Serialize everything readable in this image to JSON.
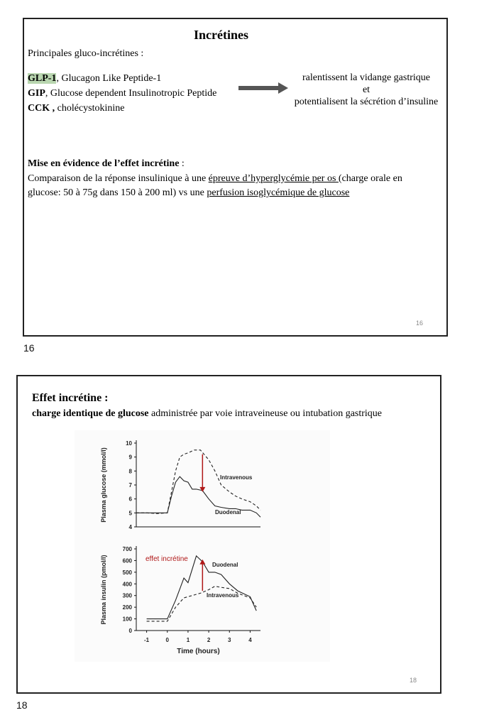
{
  "slide1": {
    "title": "Incrétines",
    "intro": "Principales gluco-incrétines :",
    "items": [
      {
        "abbr": "GLP-1",
        "desc": ", Glucagon Like Peptide-1"
      },
      {
        "abbr": "GIP",
        "desc": ", Glucose dependent Insulinotropic Peptide"
      },
      {
        "abbr": "CCK ,",
        "desc": " cholécystokinine"
      }
    ],
    "effects": [
      "ralentissent la vidange gastrique",
      "et",
      "potentialisent la sécrétion d’insuline"
    ],
    "section_title": "Mise en évidence de l’effet incrétine",
    "section_colon": " :",
    "line1_a": "Comparaison de la réponse insulinique à une ",
    "line1_u": "épreuve d’hyperglycémie per os ",
    "line1_b": "(charge orale en",
    "line2_a": "glucose: 50 à 75g dans 150 à 200 ml) vs une ",
    "line2_u": "perfusion isoglycémique de glucose",
    "slide_number": "16"
  },
  "page_label_1": "16",
  "slide2": {
    "title": "Effet incrétine :",
    "subtitle_bold": "charge identique de glucose",
    "subtitle_rest": " administrée par voie intraveineuse ou intubation gastrique",
    "slide_number": "18"
  },
  "page_label_2": "18",
  "chart_data": [
    {
      "type": "line",
      "ylabel": "Plasma glucose (mmol/l)",
      "xlim": [
        -1.5,
        4.5
      ],
      "ylim": [
        4,
        10
      ],
      "yticks": [
        4,
        5,
        6,
        7,
        8,
        9,
        10
      ],
      "series": [
        {
          "name": "Intravenous",
          "style": "dashed",
          "x": [
            -1.5,
            -1,
            -0.5,
            0,
            0.2,
            0.4,
            0.6,
            0.8,
            1.0,
            1.3,
            1.6,
            2.0,
            2.3,
            2.6,
            3.0,
            3.3,
            3.6,
            4.0,
            4.3,
            4.5
          ],
          "y": [
            5.0,
            5.0,
            4.95,
            5.0,
            6.5,
            8.0,
            9.0,
            9.2,
            9.3,
            9.5,
            9.5,
            8.8,
            8.0,
            7.0,
            6.5,
            6.2,
            6.0,
            5.8,
            5.5,
            5.2
          ]
        },
        {
          "name": "Duodenal",
          "style": "solid",
          "x": [
            -1.5,
            -1,
            -0.5,
            0,
            0.2,
            0.4,
            0.6,
            0.8,
            1.0,
            1.2,
            1.4,
            1.7,
            2.0,
            2.3,
            2.6,
            3.0,
            3.3,
            3.6,
            4.0,
            4.3,
            4.5
          ],
          "y": [
            5.0,
            5.0,
            5.0,
            5.0,
            6.2,
            7.2,
            7.6,
            7.3,
            7.2,
            6.7,
            6.7,
            6.6,
            6.0,
            5.5,
            5.4,
            5.3,
            5.3,
            5.2,
            5.2,
            5.0,
            4.7
          ]
        }
      ],
      "annotation_arrow": {
        "x": 1.7,
        "from": 9.2,
        "to": 6.5
      }
    },
    {
      "type": "line",
      "ylabel": "Plasma insulin (pmol/l)",
      "xlabel": "Time (hours)",
      "xlim": [
        -1.5,
        4.5
      ],
      "xticks": [
        -1,
        0,
        1,
        2,
        3,
        4
      ],
      "ylim": [
        0,
        700
      ],
      "yticks": [
        0,
        100,
        200,
        300,
        400,
        500,
        600,
        700
      ],
      "series": [
        {
          "name": "Duodenal",
          "style": "solid",
          "x": [
            -1,
            0,
            0.4,
            0.8,
            1.0,
            1.4,
            1.7,
            2.0,
            2.3,
            2.6,
            3.0,
            3.4,
            4.0,
            4.3
          ],
          "y": [
            100,
            100,
            260,
            450,
            410,
            640,
            590,
            500,
            500,
            480,
            400,
            340,
            290,
            170
          ]
        },
        {
          "name": "Intravenous",
          "style": "dashed",
          "x": [
            -1,
            0,
            0.4,
            0.8,
            1.2,
            1.6,
            2.0,
            2.3,
            2.6,
            3.0,
            3.4,
            4.0,
            4.3
          ],
          "y": [
            80,
            80,
            200,
            280,
            300,
            320,
            350,
            380,
            370,
            360,
            320,
            280,
            200
          ]
        }
      ],
      "annotation_arrow": {
        "x": 1.7,
        "from": 340,
        "to": 610
      },
      "annotation_label": "effet incrétine"
    }
  ]
}
